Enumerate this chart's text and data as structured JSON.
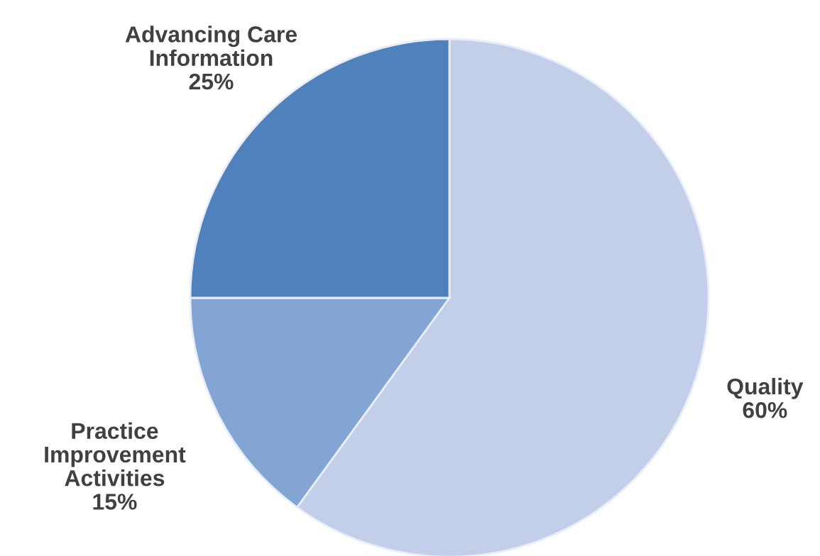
{
  "chart_data": {
    "type": "pie",
    "categories": [
      "Quality",
      "Practice\nImprovement\nActivities",
      "Advancing Care\nInformation"
    ],
    "values": [
      60,
      15,
      25
    ],
    "value_labels": [
      "60%",
      "15%",
      "25%"
    ],
    "colors": [
      "#c3cfe9",
      "#84a5d4",
      "#4f81bd"
    ],
    "legend": false
  }
}
